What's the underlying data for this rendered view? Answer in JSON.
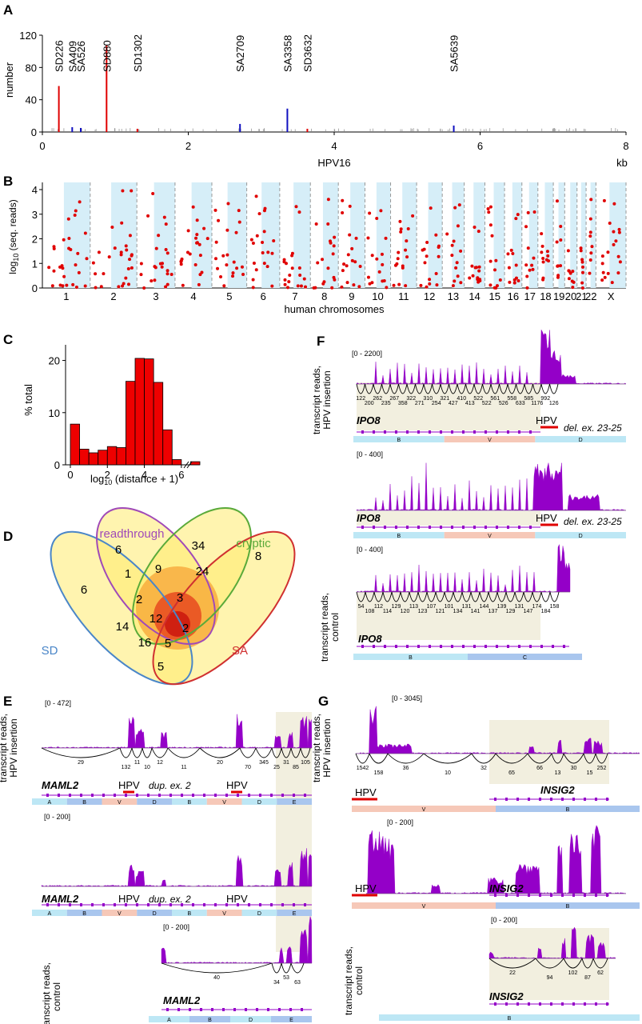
{
  "colors": {
    "red": "#e00000",
    "blue": "#1010c0",
    "purple": "#9400c8",
    "bar_red": "#ee0000",
    "lightblue": "#d6eef8",
    "beige": "#f2efdf",
    "venn_sd": "#4a86c8",
    "venn_readthrough": "#a04ab8",
    "venn_cryptic": "#5aaa3a",
    "venn_sa": "#d03030"
  },
  "panels": {
    "A": {
      "label": "A"
    },
    "B": {
      "label": "B"
    },
    "C": {
      "label": "C"
    },
    "D": {
      "label": "D"
    },
    "E": {
      "label": "E"
    },
    "F": {
      "label": "F"
    },
    "G": {
      "label": "G"
    }
  },
  "chart_data": [
    {
      "panel": "A",
      "type": "bar",
      "ylabel": "number",
      "xlabel": "HPV16",
      "x_unit": "kb",
      "ylim": [
        0,
        120
      ],
      "xlim": [
        0,
        8
      ],
      "yticks": [
        "0",
        "40",
        "80",
        "120"
      ],
      "xticks": [
        "0",
        "2",
        "4",
        "6",
        "8"
      ],
      "sites": [
        {
          "name": "SD226",
          "x": 0.226,
          "value": 57,
          "type": "SD"
        },
        {
          "name": "SA409",
          "x": 0.409,
          "value": 6,
          "type": "SA"
        },
        {
          "name": "SA526",
          "x": 0.526,
          "value": 5,
          "type": "SA"
        },
        {
          "name": "SD880",
          "x": 0.88,
          "value": 107,
          "type": "SD"
        },
        {
          "name": "SD1302",
          "x": 1.302,
          "value": 4,
          "type": "SD"
        },
        {
          "name": "SA2709",
          "x": 2.709,
          "value": 10,
          "type": "SA"
        },
        {
          "name": "SA3358",
          "x": 3.358,
          "value": 29,
          "type": "SA"
        },
        {
          "name": "SD3632",
          "x": 3.632,
          "value": 4,
          "type": "SD"
        },
        {
          "name": "SA5639",
          "x": 5.639,
          "value": 8,
          "type": "SA"
        }
      ]
    },
    {
      "panel": "B",
      "type": "scatter",
      "ylabel": "log10 (seq. reads)",
      "xlabel": "human chromosomes",
      "ylim": [
        0,
        4
      ],
      "yticks": [
        "0",
        "1",
        "2",
        "3",
        "4"
      ],
      "chromosomes": [
        "1",
        "2",
        "3",
        "4",
        "5",
        "6",
        "7",
        "8",
        "9",
        "10",
        "11",
        "12",
        "13",
        "14",
        "15",
        "16",
        "17",
        "18",
        "19",
        "20",
        "21",
        "22",
        "X"
      ]
    },
    {
      "panel": "C",
      "type": "bar",
      "ylabel": "% total",
      "xlabel": "log10 (distance + 1)",
      "ylim": [
        0,
        23
      ],
      "xlim": [
        0,
        7
      ],
      "yticks": [
        "0",
        "10",
        "20"
      ],
      "xticks": [
        "0",
        "2",
        "4",
        "6"
      ],
      "bin_width": 0.5,
      "bins_start": [
        0,
        0.5,
        1,
        1.5,
        2,
        2.5,
        3,
        3.5,
        4,
        4.5,
        5,
        5.5,
        6.5
      ],
      "values": [
        7.8,
        3.0,
        2.3,
        2.8,
        3.5,
        3.3,
        16.0,
        20.4,
        20.3,
        15.8,
        6.7,
        1.0,
        0.6
      ]
    },
    {
      "panel": "D",
      "type": "table",
      "sets": [
        "SD",
        "readthrough",
        "cryptic",
        "SA"
      ],
      "regions": [
        {
          "sets": "SD",
          "value": "6"
        },
        {
          "sets": "readthrough",
          "value": "6"
        },
        {
          "sets": "cryptic",
          "value": "34"
        },
        {
          "sets": "SA",
          "value": "8"
        },
        {
          "sets": "SD+readthrough",
          "value": "1"
        },
        {
          "sets": "readthrough+cryptic",
          "value": "9"
        },
        {
          "sets": "cryptic+SA",
          "value": "24"
        },
        {
          "sets": "SD+readthrough+cryptic",
          "value": "2"
        },
        {
          "sets": "readthrough+cryptic+SA",
          "value": "3"
        },
        {
          "sets": "SD+cryptic",
          "value": "14"
        },
        {
          "sets": "all",
          "value": "12"
        },
        {
          "sets": "readthrough+SA",
          "value": "2"
        },
        {
          "sets": "SD+cryptic+SA",
          "value": "16"
        },
        {
          "sets": "SD+readthrough+cryptic+SA extra",
          "value": "5"
        },
        {
          "sets": "SD+SA",
          "value": "5"
        }
      ]
    }
  ],
  "panelE": {
    "track1": {
      "range": "[0 - 472]",
      "ylabel": [
        "transcript reads,",
        "HPV insertion"
      ],
      "gene": "MAML2",
      "hpv1": "HPV",
      "note": "dup. ex. 2",
      "hpv2": "HPV",
      "junctions": [
        "29",
        "132",
        "11",
        "10",
        "12",
        "11",
        "20",
        "70",
        "345",
        "25",
        "31",
        "85",
        "105",
        "151",
        "128",
        "11",
        "9"
      ],
      "segments": [
        "A",
        "B",
        "V",
        "D",
        "B",
        "V",
        "D",
        "E"
      ]
    },
    "track2": {
      "range": "[0 - 200]",
      "gene": "MAML2",
      "hpv1": "HPV",
      "note": "dup. ex. 2",
      "hpv2": "HPV",
      "segments": [
        "A",
        "B",
        "V",
        "D",
        "B",
        "V",
        "D",
        "E"
      ]
    },
    "track3": {
      "range": "[0 - 200]",
      "ylabel": [
        "transcript reads,",
        "control"
      ],
      "gene": "MAML2",
      "junctions": [
        "40",
        "34",
        "53",
        "63"
      ],
      "segments": [
        "A",
        "B",
        "D",
        "E"
      ]
    }
  },
  "panelF": {
    "track1": {
      "range": "[0 - 2200]",
      "ylabel": [
        "transcript reads,",
        "HPV insertion"
      ],
      "gene": "IPO8",
      "hpv": "HPV",
      "note": "del. ex. 23-25",
      "junctions": [
        "122",
        "200",
        "262",
        "235",
        "267",
        "358",
        "322",
        "271",
        "310",
        "254",
        "321",
        "427",
        "410",
        "413",
        "522",
        "522",
        "561",
        "526",
        "558",
        "633",
        "585",
        "1176",
        "992",
        "126",
        "115",
        "100"
      ],
      "segments": [
        "B",
        "V",
        "D"
      ]
    },
    "track2": {
      "range": "[0 - 400]",
      "gene": "IPO8",
      "hpv": "HPV",
      "note": "del. ex. 23-25",
      "segments": [
        "B",
        "V",
        "D"
      ]
    },
    "track3": {
      "range": "[0 - 400]",
      "ylabel": [
        "transcript reads,",
        "control"
      ],
      "gene": "IPO8",
      "junctions": [
        "54",
        "108",
        "112",
        "114",
        "129",
        "120",
        "113",
        "123",
        "107",
        "121",
        "101",
        "134",
        "131",
        "141",
        "144",
        "137",
        "139",
        "129",
        "131",
        "147",
        "174",
        "184",
        "158",
        "124"
      ],
      "segments": [
        "B",
        "C"
      ]
    }
  },
  "panelG": {
    "track1": {
      "range": "[0 - 3045]",
      "ylabel": [
        "transcript reads,",
        "HPV insertion"
      ],
      "gene": "INSIG2",
      "hpv": "HPV",
      "junctions": [
        "1542",
        "158",
        "36",
        "10",
        "32",
        "65",
        "66",
        "13",
        "30",
        "15",
        "252",
        "13",
        "429",
        "404",
        "389"
      ],
      "segments": [
        "V",
        "B"
      ]
    },
    "track2": {
      "range": "[0 - 200]",
      "gene": "INSIG2",
      "hpv": "HPV",
      "segments": [
        "V",
        "B"
      ]
    },
    "track3": {
      "range": "[0 - 200]",
      "ylabel": [
        "transcript reads,",
        "control"
      ],
      "gene": "INSIG2",
      "junctions": [
        "22",
        "94",
        "102",
        "87",
        "62"
      ],
      "segments": [
        "B"
      ]
    }
  }
}
